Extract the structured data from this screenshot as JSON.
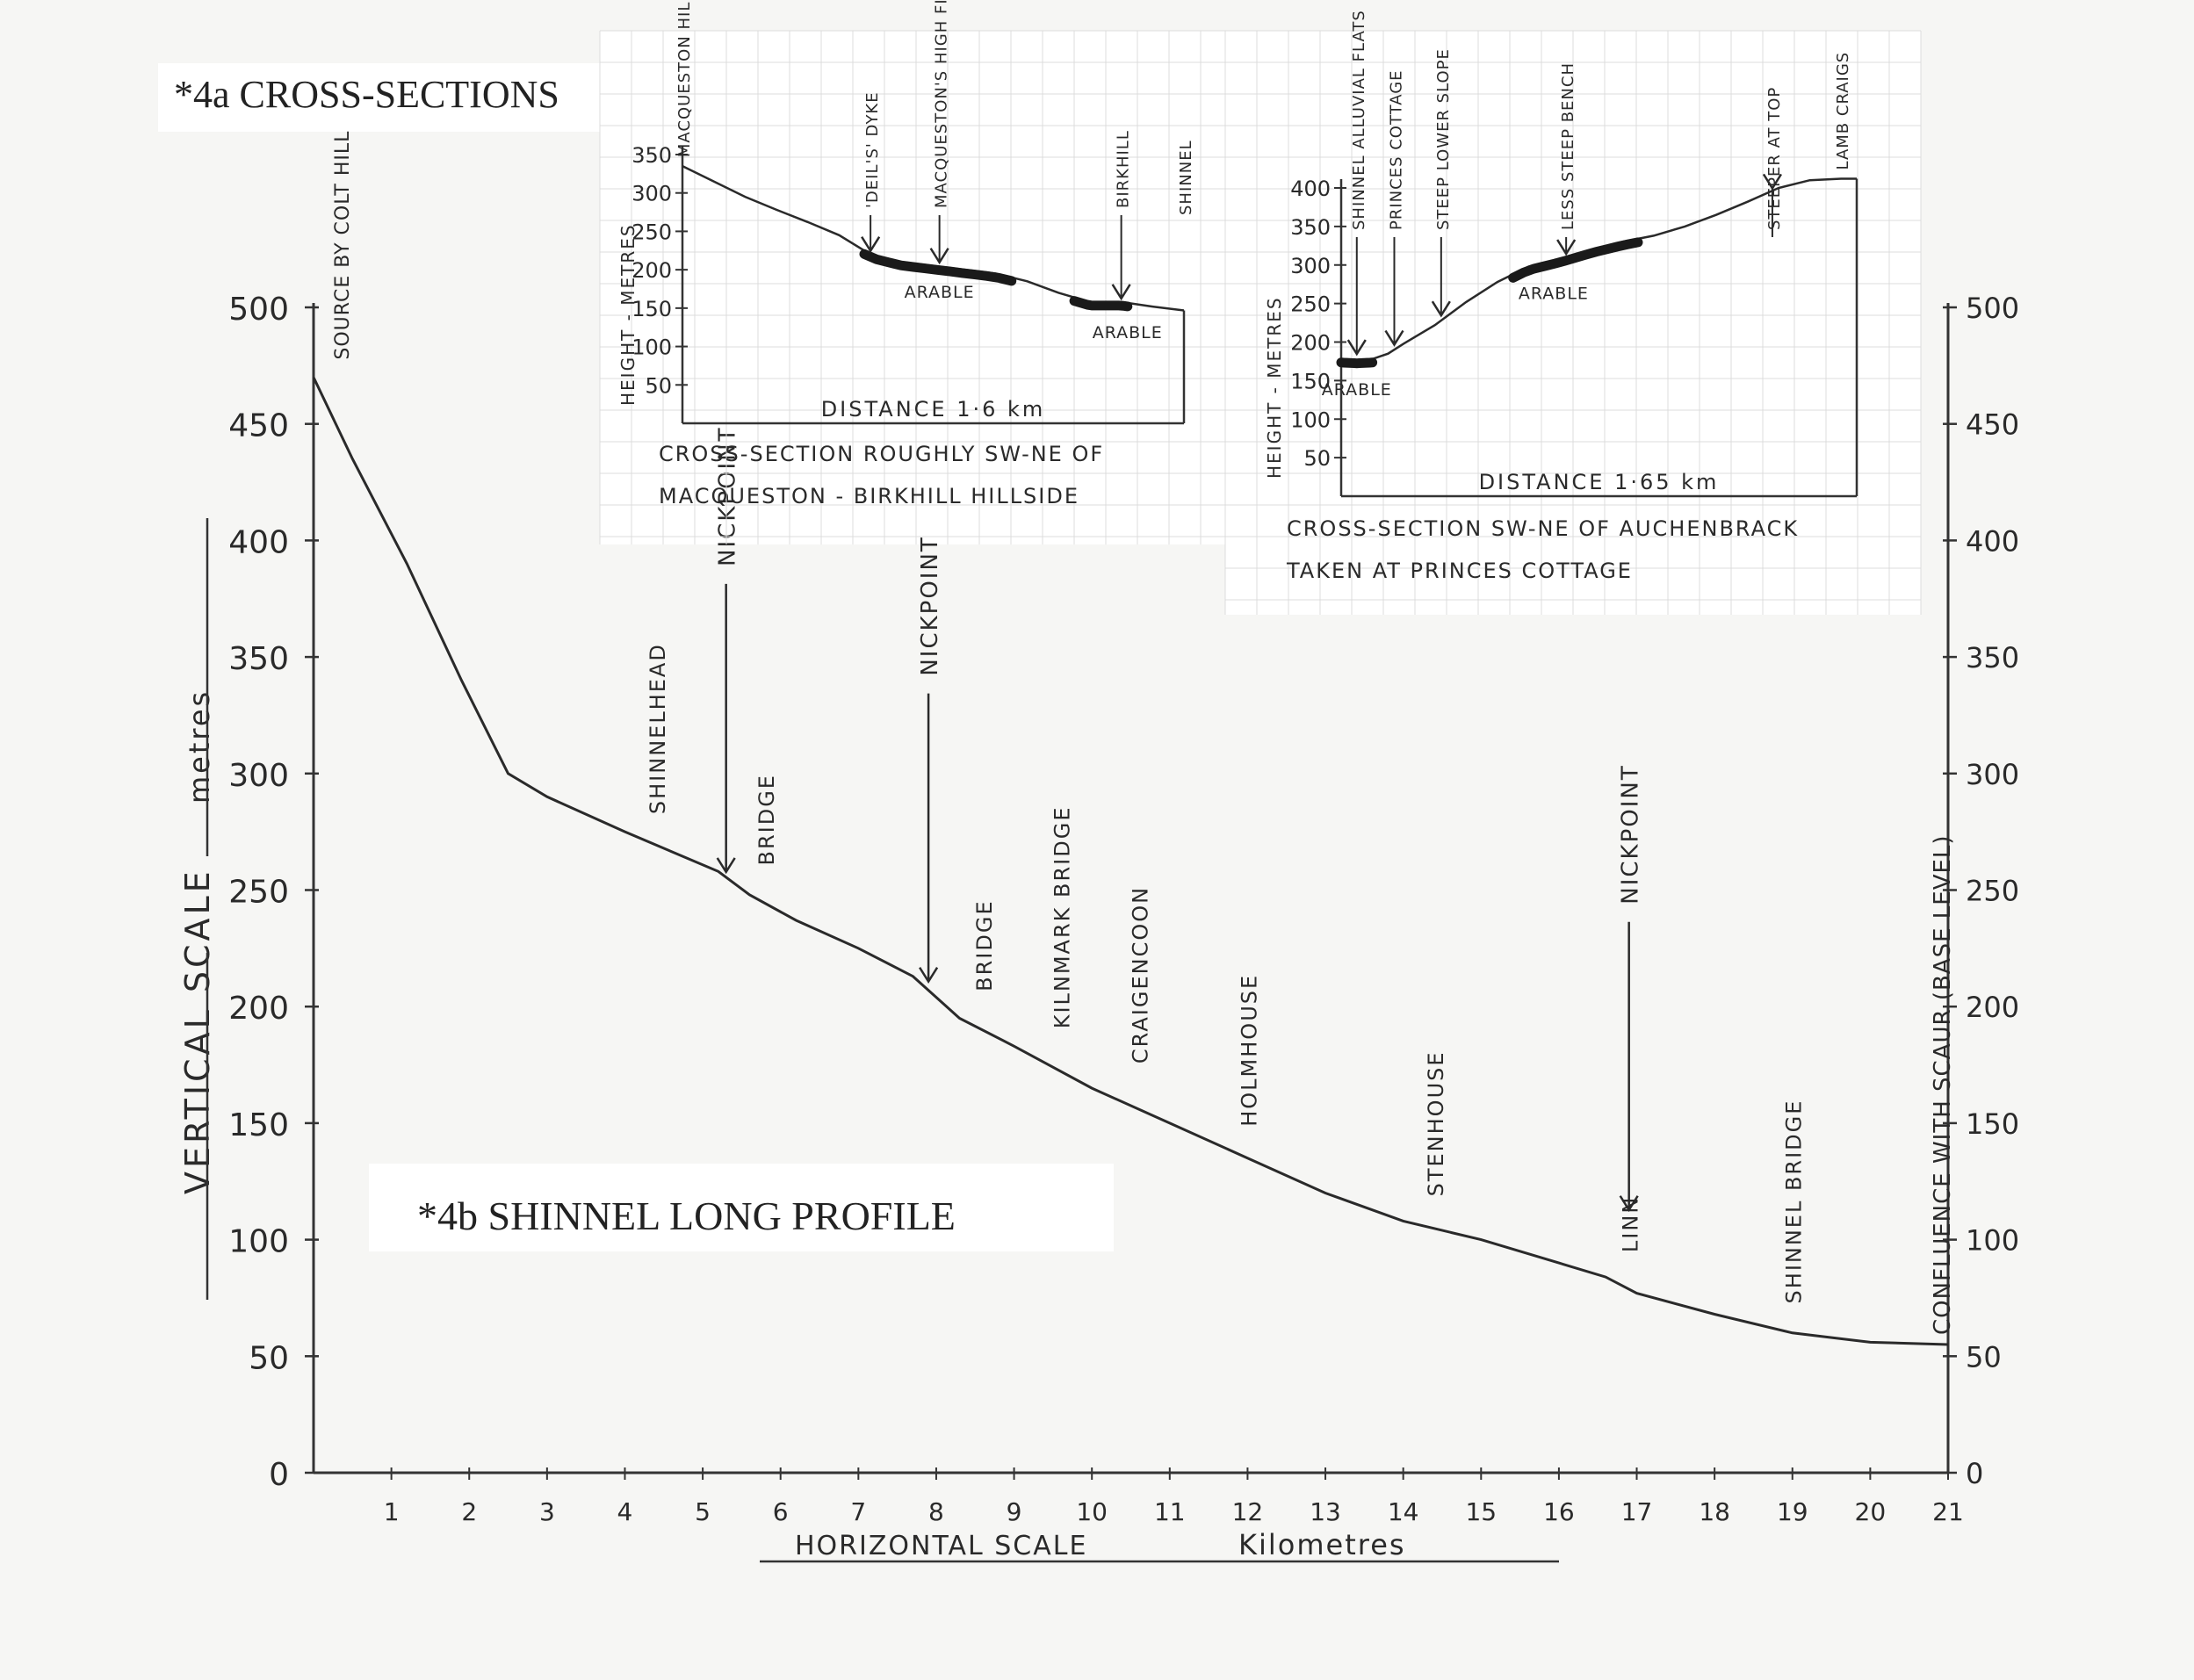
{
  "titles": {
    "cross_sections": "*4a   CROSS-SECTIONS",
    "long_profile": "*4b   SHINNEL   LONG PROFILE"
  },
  "chart_data": [
    {
      "type": "line",
      "title": "*4b   SHINNEL   LONG PROFILE",
      "xlabel": "HORIZONTAL SCALE",
      "xunit": "Kilometres",
      "ylabel": "VERTICAL   SCALE",
      "yunit": "metres",
      "right_axis_label": "CONFLUENCE WITH SCAUR (BASE LEVEL)",
      "xlim": [
        0,
        21
      ],
      "ylim": [
        0,
        500
      ],
      "x_ticks": [
        "1",
        "2",
        "3",
        "4",
        "5",
        "6",
        "7",
        "8",
        "9",
        "10",
        "11",
        "12",
        "13",
        "14",
        "15",
        "16",
        "17",
        "18",
        "19",
        "20",
        "21"
      ],
      "y_ticks": [
        "0",
        "50",
        "100",
        "150",
        "200",
        "250",
        "300",
        "350",
        "400",
        "450",
        "500"
      ],
      "grid": false,
      "series": [
        {
          "x": [
            0.0,
            0.5,
            1.2,
            1.9,
            2.5,
            3.0,
            4.0,
            5.2,
            5.6,
            6.2,
            7.0,
            7.7,
            8.3,
            9.0,
            10.0,
            11.0,
            12.0,
            13.0,
            14.0,
            15.0,
            16.0,
            16.6,
            17.0,
            18.0,
            19.0,
            20.0,
            21.0
          ],
          "y": [
            470,
            435,
            390,
            340,
            300,
            290,
            275,
            258,
            248,
            237,
            225,
            213,
            195,
            183,
            165,
            150,
            135,
            120,
            108,
            100,
            90,
            84,
            77,
            68,
            60,
            56,
            55
          ]
        }
      ],
      "annotations": [
        {
          "text": "SOURCE BY COLT HILL",
          "x": 0.0,
          "y": 470
        },
        {
          "text": "SHINNELHEAD",
          "x": 4.4,
          "y": 272
        },
        {
          "text": "NICKPOINT",
          "x": 5.3,
          "y": 257,
          "arrow": true
        },
        {
          "text": "BRIDGE",
          "x": 5.8,
          "y": 250
        },
        {
          "text": "NICKPOINT",
          "x": 7.9,
          "y": 210,
          "arrow": true
        },
        {
          "text": "BRIDGE",
          "x": 8.6,
          "y": 196
        },
        {
          "text": "KILNMARK BRIDGE",
          "x": 9.6,
          "y": 180
        },
        {
          "text": "CRAIGENCOON",
          "x": 10.6,
          "y": 165
        },
        {
          "text": "HOLMHOUSE",
          "x": 12.0,
          "y": 138
        },
        {
          "text": "STENHOUSE",
          "x": 14.4,
          "y": 108
        },
        {
          "text": "NICKPOINT",
          "x": 16.9,
          "y": 112,
          "arrow": true
        },
        {
          "text": "LINN",
          "x": 16.9,
          "y": 84
        },
        {
          "text": "SHINNEL BRIDGE",
          "x": 19.0,
          "y": 62
        }
      ]
    },
    {
      "type": "area",
      "xlabel": "DISTANCE",
      "distance_label": "DISTANCE  1·6  km",
      "ylabel": "HEIGHT - METRES",
      "caption_lines": [
        "CROSS-SECTION  ROUGHLY  SW-NE  OF",
        "MACQUESTON - BIRKHILL  HILLSIDE"
      ],
      "xlim": [
        0,
        1.6
      ],
      "ylim": [
        0,
        350
      ],
      "y_ticks": [
        "50",
        "100",
        "150",
        "200",
        "250",
        "300",
        "350"
      ],
      "grid": true,
      "series": [
        {
          "x": [
            0.0,
            0.1,
            0.2,
            0.3,
            0.4,
            0.5,
            0.6,
            0.7,
            0.8,
            0.9,
            1.0,
            1.1,
            1.2,
            1.3,
            1.4,
            1.5,
            1.6
          ],
          "y": [
            335,
            315,
            295,
            278,
            262,
            245,
            220,
            210,
            205,
            200,
            195,
            185,
            170,
            158,
            158,
            152,
            147
          ]
        }
      ],
      "arable_segments": [
        [
          0.58,
          1.05
        ],
        [
          1.25,
          1.42
        ]
      ],
      "annotations": [
        {
          "text": "MACQUESTON HILL",
          "x": 0.0,
          "y": 335
        },
        {
          "text": "'DEIL'S' DYKE",
          "x": 0.6,
          "y": 220,
          "arrow": true
        },
        {
          "text": "MACQUESTON'S HIGH FIELDS",
          "x": 0.82,
          "y": 205,
          "arrow": true
        },
        {
          "text": "BIRKHILL",
          "x": 1.4,
          "y": 158,
          "arrow": true
        },
        {
          "text": "SHINNEL",
          "x": 1.6,
          "y": 147
        },
        {
          "text": "ARABLE",
          "x": 0.82,
          "y": 198
        },
        {
          "text": "ARABLE",
          "x": 1.42,
          "y": 145
        }
      ]
    },
    {
      "type": "area",
      "xlabel": "DISTANCE",
      "distance_label": "DISTANCE  1·65  km",
      "ylabel": "HEIGHT - METRES",
      "caption_lines": [
        "CROSS-SECTION  SW-NE  OF  AUCHENBRACK",
        "TAKEN  AT  PRINCES  COTTAGE"
      ],
      "xlim": [
        0,
        1.65
      ],
      "ylim": [
        0,
        400
      ],
      "y_ticks": [
        "50",
        "100",
        "150",
        "200",
        "250",
        "300",
        "350",
        "400"
      ],
      "grid": true,
      "series": [
        {
          "x": [
            0.0,
            0.05,
            0.1,
            0.15,
            0.2,
            0.3,
            0.4,
            0.5,
            0.6,
            0.7,
            0.8,
            0.9,
            1.0,
            1.1,
            1.2,
            1.3,
            1.4,
            1.5,
            1.6,
            1.65
          ],
          "y": [
            178,
            177,
            178,
            185,
            198,
            222,
            252,
            278,
            298,
            308,
            320,
            330,
            338,
            350,
            365,
            382,
            400,
            410,
            412,
            412
          ]
        }
      ],
      "arable_segments": [
        [
          0.0,
          0.1
        ],
        [
          0.55,
          0.95
        ]
      ],
      "annotations": [
        {
          "text": "SHINNEL ALLUVIAL FLATS",
          "x": 0.05,
          "y": 180,
          "arrow": true
        },
        {
          "text": "PRINCES COTTAGE",
          "x": 0.17,
          "y": 192,
          "arrow": true
        },
        {
          "text": "STEEP LOWER SLOPE",
          "x": 0.32,
          "y": 230,
          "arrow": true
        },
        {
          "text": "LESS STEEP BENCH",
          "x": 0.72,
          "y": 310,
          "arrow": true
        },
        {
          "text": "STEEPER AT TOP",
          "x": 1.38,
          "y": 395,
          "arrow": true
        },
        {
          "text": "LAMB CRAIGS",
          "x": 1.6,
          "y": 412
        },
        {
          "text": "ARABLE",
          "x": 0.05,
          "y": 165
        },
        {
          "text": "ARABLE",
          "x": 0.68,
          "y": 290
        }
      ]
    }
  ]
}
